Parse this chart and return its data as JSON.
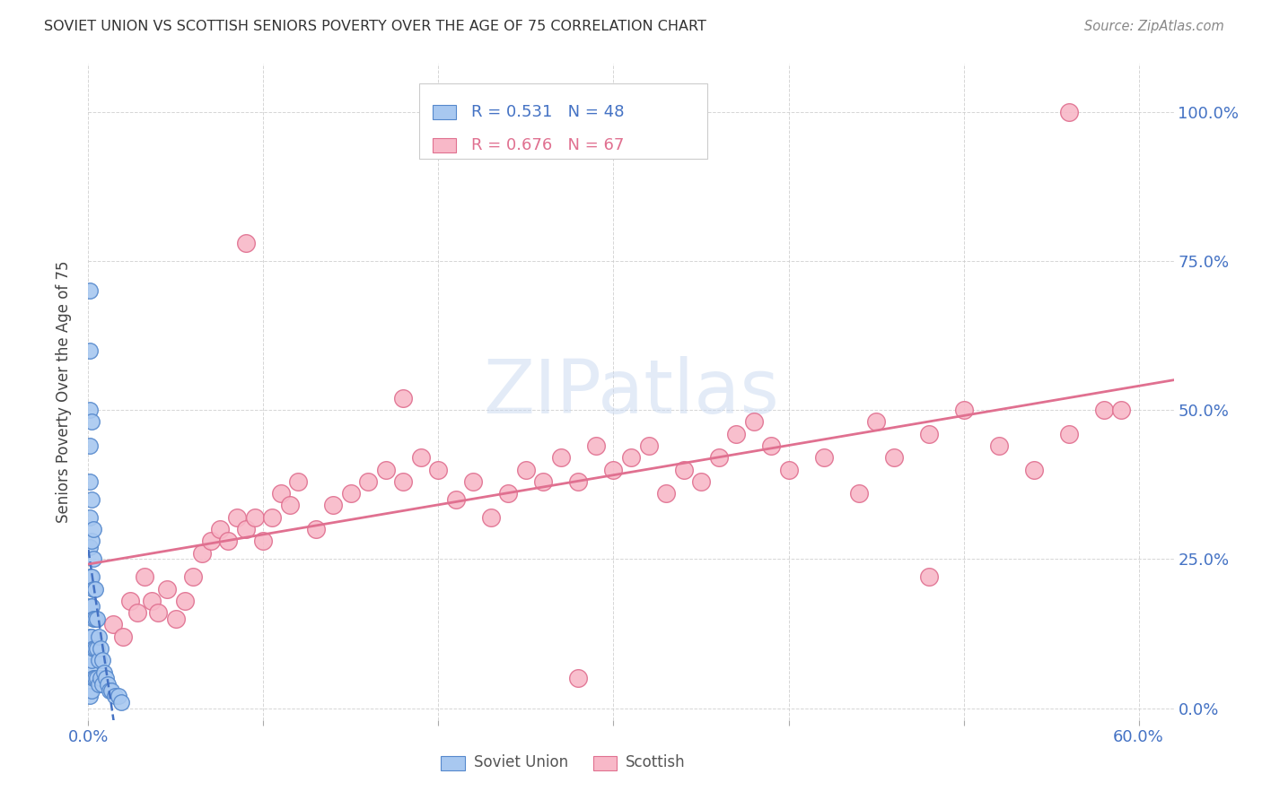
{
  "title": "SOVIET UNION VS SCOTTISH SENIORS POVERTY OVER THE AGE OF 75 CORRELATION CHART",
  "source": "Source: ZipAtlas.com",
  "ylabel": "Seniors Poverty Over the Age of 75",
  "legend_label1": "Soviet Union",
  "legend_label2": "Scottish",
  "legend_R1": "R = 0.531",
  "legend_N1": "N = 48",
  "legend_R2": "R = 0.676",
  "legend_N2": "N = 67",
  "color_soviet_face": "#A8C8F0",
  "color_soviet_edge": "#5588CC",
  "color_line_soviet": "#4472C4",
  "color_scottish_face": "#F8B8C8",
  "color_scottish_edge": "#E07090",
  "color_line_scottish": "#E07090",
  "color_axis_labels": "#4472C4",
  "watermark": "ZIPatlas",
  "xlim": [
    0.0,
    0.62
  ],
  "ylim": [
    -0.02,
    1.08
  ],
  "xticks": [
    0.0,
    0.1,
    0.2,
    0.3,
    0.4,
    0.5,
    0.6
  ],
  "xtick_labels": [
    "0.0%",
    "",
    "",
    "",
    "",
    "",
    "60.0%"
  ],
  "ytick_labels": [
    "0.0%",
    "25.0%",
    "50.0%",
    "75.0%",
    "100.0%"
  ],
  "yticks": [
    0.0,
    0.25,
    0.5,
    0.75,
    1.0
  ],
  "soviet_x": [
    0.001,
    0.001,
    0.001,
    0.001,
    0.001,
    0.001,
    0.001,
    0.001,
    0.001,
    0.002,
    0.002,
    0.002,
    0.002,
    0.002,
    0.002,
    0.002,
    0.003,
    0.003,
    0.003,
    0.003,
    0.003,
    0.004,
    0.004,
    0.004,
    0.004,
    0.005,
    0.005,
    0.005,
    0.006,
    0.006,
    0.006,
    0.007,
    0.007,
    0.008,
    0.008,
    0.009,
    0.01,
    0.011,
    0.012,
    0.013,
    0.015,
    0.017,
    0.019,
    0.001,
    0.001,
    0.001,
    0.002,
    0.003
  ],
  "soviet_y": [
    0.44,
    0.38,
    0.32,
    0.27,
    0.22,
    0.17,
    0.12,
    0.07,
    0.02,
    0.35,
    0.28,
    0.22,
    0.17,
    0.12,
    0.08,
    0.03,
    0.25,
    0.2,
    0.15,
    0.1,
    0.05,
    0.2,
    0.15,
    0.1,
    0.05,
    0.15,
    0.1,
    0.05,
    0.12,
    0.08,
    0.04,
    0.1,
    0.05,
    0.08,
    0.04,
    0.06,
    0.05,
    0.04,
    0.03,
    0.03,
    0.02,
    0.02,
    0.01,
    0.5,
    0.6,
    0.7,
    0.48,
    0.3
  ],
  "scottish_x": [
    0.014,
    0.02,
    0.024,
    0.028,
    0.032,
    0.036,
    0.04,
    0.045,
    0.05,
    0.055,
    0.06,
    0.065,
    0.07,
    0.075,
    0.08,
    0.085,
    0.09,
    0.095,
    0.1,
    0.105,
    0.11,
    0.115,
    0.12,
    0.13,
    0.14,
    0.15,
    0.16,
    0.17,
    0.18,
    0.19,
    0.2,
    0.21,
    0.22,
    0.23,
    0.24,
    0.25,
    0.26,
    0.27,
    0.28,
    0.29,
    0.3,
    0.31,
    0.32,
    0.33,
    0.34,
    0.35,
    0.36,
    0.37,
    0.38,
    0.39,
    0.4,
    0.42,
    0.44,
    0.46,
    0.48,
    0.5,
    0.52,
    0.54,
    0.56,
    0.58,
    0.59,
    0.09,
    0.18,
    0.28,
    0.45,
    0.48,
    0.56
  ],
  "scottish_y": [
    0.14,
    0.12,
    0.18,
    0.16,
    0.22,
    0.18,
    0.16,
    0.2,
    0.15,
    0.18,
    0.22,
    0.26,
    0.28,
    0.3,
    0.28,
    0.32,
    0.3,
    0.32,
    0.28,
    0.32,
    0.36,
    0.34,
    0.38,
    0.3,
    0.34,
    0.36,
    0.38,
    0.4,
    0.38,
    0.42,
    0.4,
    0.35,
    0.38,
    0.32,
    0.36,
    0.4,
    0.38,
    0.42,
    0.38,
    0.44,
    0.4,
    0.42,
    0.44,
    0.36,
    0.4,
    0.38,
    0.42,
    0.46,
    0.48,
    0.44,
    0.4,
    0.42,
    0.36,
    0.42,
    0.46,
    0.5,
    0.44,
    0.4,
    0.46,
    0.5,
    0.5,
    0.78,
    0.52,
    0.05,
    0.48,
    0.22,
    1.0
  ]
}
